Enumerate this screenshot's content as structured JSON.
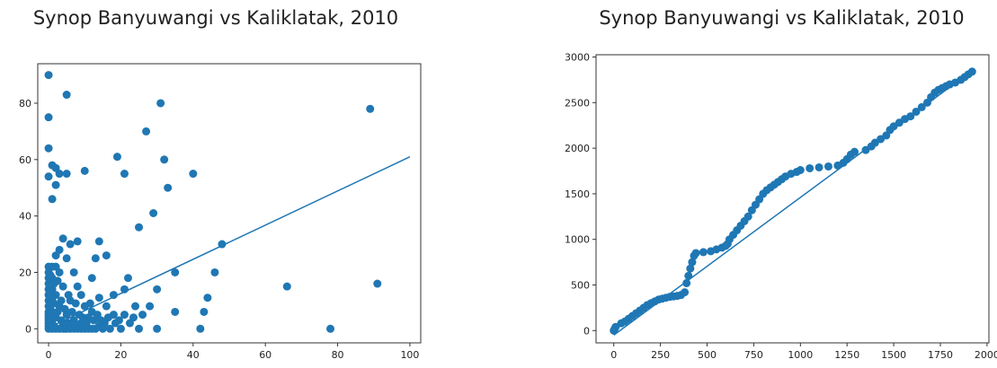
{
  "chart_data": [
    {
      "type": "scatter",
      "title": "Synop Banyuwangi vs Kaliklatak, 2010",
      "xlabel": "",
      "ylabel": "",
      "xlim": [
        -3,
        103
      ],
      "ylim": [
        -5,
        94
      ],
      "xticks": [
        0,
        20,
        40,
        60,
        80,
        100
      ],
      "yticks": [
        0,
        20,
        40,
        60,
        80
      ],
      "grid": false,
      "marker_color": "#1f77b4",
      "points": [
        [
          0,
          90
        ],
        [
          0,
          75
        ],
        [
          0,
          64
        ],
        [
          0,
          54
        ],
        [
          1,
          58
        ],
        [
          2,
          57
        ],
        [
          1,
          46
        ],
        [
          3,
          55
        ],
        [
          2,
          51
        ],
        [
          5,
          83
        ],
        [
          5,
          55
        ],
        [
          10,
          56
        ],
        [
          19,
          61
        ],
        [
          21,
          55
        ],
        [
          27,
          70
        ],
        [
          31,
          80
        ],
        [
          32,
          60
        ],
        [
          33,
          50
        ],
        [
          29,
          41
        ],
        [
          25,
          36
        ],
        [
          40,
          55
        ],
        [
          89,
          78
        ],
        [
          91,
          16
        ],
        [
          66,
          15
        ],
        [
          78,
          0
        ],
        [
          48,
          30
        ],
        [
          46,
          20
        ],
        [
          44,
          11
        ],
        [
          43,
          6
        ],
        [
          42,
          0
        ],
        [
          35,
          20
        ],
        [
          35,
          6
        ],
        [
          30,
          14
        ],
        [
          30,
          0
        ],
        [
          28,
          8
        ],
        [
          26,
          5
        ],
        [
          25,
          0
        ],
        [
          24,
          8
        ],
        [
          22,
          18
        ],
        [
          21,
          14
        ],
        [
          21,
          5
        ],
        [
          20,
          0
        ],
        [
          18,
          12
        ],
        [
          18,
          5
        ],
        [
          17,
          0
        ],
        [
          16,
          8
        ],
        [
          16,
          26
        ],
        [
          15,
          0
        ],
        [
          14,
          11
        ],
        [
          14,
          31
        ],
        [
          13,
          25
        ],
        [
          12,
          18
        ],
        [
          12,
          6
        ],
        [
          12,
          0
        ],
        [
          11,
          0
        ],
        [
          11,
          4
        ],
        [
          10,
          8
        ],
        [
          10,
          0
        ],
        [
          9,
          12
        ],
        [
          9,
          2
        ],
        [
          8,
          0
        ],
        [
          8,
          15
        ],
        [
          8,
          31
        ],
        [
          7,
          20
        ],
        [
          7,
          3
        ],
        [
          6,
          30
        ],
        [
          6,
          10
        ],
        [
          6,
          0
        ],
        [
          5,
          25
        ],
        [
          5,
          5
        ],
        [
          4,
          32
        ],
        [
          4,
          15
        ],
        [
          4,
          2
        ],
        [
          3,
          28
        ],
        [
          3,
          20
        ],
        [
          3,
          8
        ],
        [
          3,
          0
        ],
        [
          2,
          26
        ],
        [
          2,
          22
        ],
        [
          2,
          12
        ],
        [
          2,
          4
        ],
        [
          2,
          0
        ],
        [
          1,
          22
        ],
        [
          1,
          18
        ],
        [
          1,
          14
        ],
        [
          1,
          10
        ],
        [
          1,
          6
        ],
        [
          1,
          3
        ],
        [
          1,
          0
        ],
        [
          0,
          22
        ],
        [
          0,
          20
        ],
        [
          0,
          18
        ],
        [
          0,
          16
        ],
        [
          0,
          14
        ],
        [
          0,
          12
        ],
        [
          0,
          10
        ],
        [
          0,
          8
        ],
        [
          0,
          6
        ],
        [
          0,
          5
        ],
        [
          0,
          4
        ],
        [
          0,
          3
        ],
        [
          0,
          2
        ],
        [
          0,
          1
        ],
        [
          0,
          0
        ],
        [
          0.5,
          19
        ],
        [
          0.5,
          15
        ],
        [
          0.5,
          11
        ],
        [
          0.5,
          7
        ],
        [
          0.5,
          3
        ],
        [
          1.5,
          16
        ],
        [
          1.5,
          9
        ],
        [
          1.5,
          1
        ],
        [
          2.5,
          17
        ],
        [
          2.5,
          6
        ],
        [
          3.5,
          10
        ],
        [
          3.5,
          3
        ],
        [
          4.5,
          7
        ],
        [
          4.5,
          0
        ],
        [
          5.5,
          12
        ],
        [
          5.5,
          2
        ],
        [
          6.5,
          6
        ],
        [
          7.5,
          9
        ],
        [
          7.5,
          1
        ],
        [
          8.5,
          5
        ],
        [
          9.5,
          4
        ],
        [
          10.5,
          2
        ],
        [
          11.5,
          9
        ],
        [
          12.5,
          3
        ],
        [
          13.5,
          5
        ],
        [
          14.5,
          3
        ],
        [
          15.5,
          2
        ],
        [
          16.5,
          4
        ],
        [
          18.5,
          2
        ],
        [
          19.5,
          3
        ],
        [
          22.5,
          2
        ],
        [
          23.5,
          4
        ],
        [
          4,
          0
        ],
        [
          5,
          0
        ],
        [
          6,
          1
        ],
        [
          7,
          0
        ],
        [
          8,
          1
        ],
        [
          9,
          0
        ],
        [
          10,
          1
        ],
        [
          13,
          0
        ],
        [
          14,
          1
        ]
      ],
      "fit_line": {
        "x": [
          2,
          100
        ],
        "y": [
          1.6,
          61
        ]
      }
    },
    {
      "type": "scatter",
      "title": "Synop Banyuwangi vs Kaliklatak, 2010",
      "xlabel": "",
      "ylabel": "",
      "xlim": [
        -95,
        2010
      ],
      "ylim": [
        -135,
        3025
      ],
      "xticks": [
        0,
        250,
        500,
        750,
        1000,
        1250,
        1500,
        1750,
        2000
      ],
      "yticks": [
        0,
        500,
        1000,
        1500,
        2000,
        2500,
        3000
      ],
      "grid": false,
      "marker_color": "#1f77b4",
      "points": [
        [
          0,
          0
        ],
        [
          5,
          20
        ],
        [
          10,
          40
        ],
        [
          40,
          80
        ],
        [
          60,
          100
        ],
        [
          80,
          130
        ],
        [
          100,
          160
        ],
        [
          120,
          190
        ],
        [
          140,
          220
        ],
        [
          160,
          250
        ],
        [
          180,
          280
        ],
        [
          200,
          300
        ],
        [
          220,
          320
        ],
        [
          240,
          340
        ],
        [
          260,
          350
        ],
        [
          280,
          360
        ],
        [
          300,
          370
        ],
        [
          320,
          375
        ],
        [
          340,
          380
        ],
        [
          360,
          390
        ],
        [
          380,
          420
        ],
        [
          390,
          520
        ],
        [
          400,
          600
        ],
        [
          410,
          680
        ],
        [
          420,
          750
        ],
        [
          430,
          820
        ],
        [
          440,
          850
        ],
        [
          480,
          860
        ],
        [
          520,
          870
        ],
        [
          550,
          890
        ],
        [
          580,
          910
        ],
        [
          600,
          930
        ],
        [
          610,
          950
        ],
        [
          620,
          1000
        ],
        [
          640,
          1050
        ],
        [
          660,
          1100
        ],
        [
          680,
          1150
        ],
        [
          700,
          1200
        ],
        [
          720,
          1250
        ],
        [
          740,
          1320
        ],
        [
          760,
          1380
        ],
        [
          780,
          1440
        ],
        [
          800,
          1500
        ],
        [
          820,
          1540
        ],
        [
          840,
          1570
        ],
        [
          860,
          1600
        ],
        [
          880,
          1630
        ],
        [
          900,
          1660
        ],
        [
          920,
          1690
        ],
        [
          950,
          1720
        ],
        [
          980,
          1740
        ],
        [
          1000,
          1760
        ],
        [
          1050,
          1780
        ],
        [
          1100,
          1790
        ],
        [
          1150,
          1800
        ],
        [
          1200,
          1810
        ],
        [
          1230,
          1840
        ],
        [
          1250,
          1880
        ],
        [
          1270,
          1930
        ],
        [
          1290,
          1960
        ],
        [
          1350,
          1980
        ],
        [
          1380,
          2020
        ],
        [
          1400,
          2060
        ],
        [
          1430,
          2100
        ],
        [
          1460,
          2140
        ],
        [
          1480,
          2200
        ],
        [
          1500,
          2240
        ],
        [
          1530,
          2280
        ],
        [
          1560,
          2320
        ],
        [
          1590,
          2350
        ],
        [
          1620,
          2400
        ],
        [
          1650,
          2450
        ],
        [
          1680,
          2500
        ],
        [
          1700,
          2560
        ],
        [
          1720,
          2610
        ],
        [
          1740,
          2640
        ],
        [
          1760,
          2660
        ],
        [
          1780,
          2680
        ],
        [
          1800,
          2700
        ],
        [
          1830,
          2720
        ],
        [
          1860,
          2750
        ],
        [
          1880,
          2780
        ],
        [
          1900,
          2810
        ],
        [
          1920,
          2840
        ]
      ],
      "fit_line": {
        "x": [
          0,
          1920
        ],
        "y": [
          -50,
          2850
        ]
      }
    }
  ]
}
